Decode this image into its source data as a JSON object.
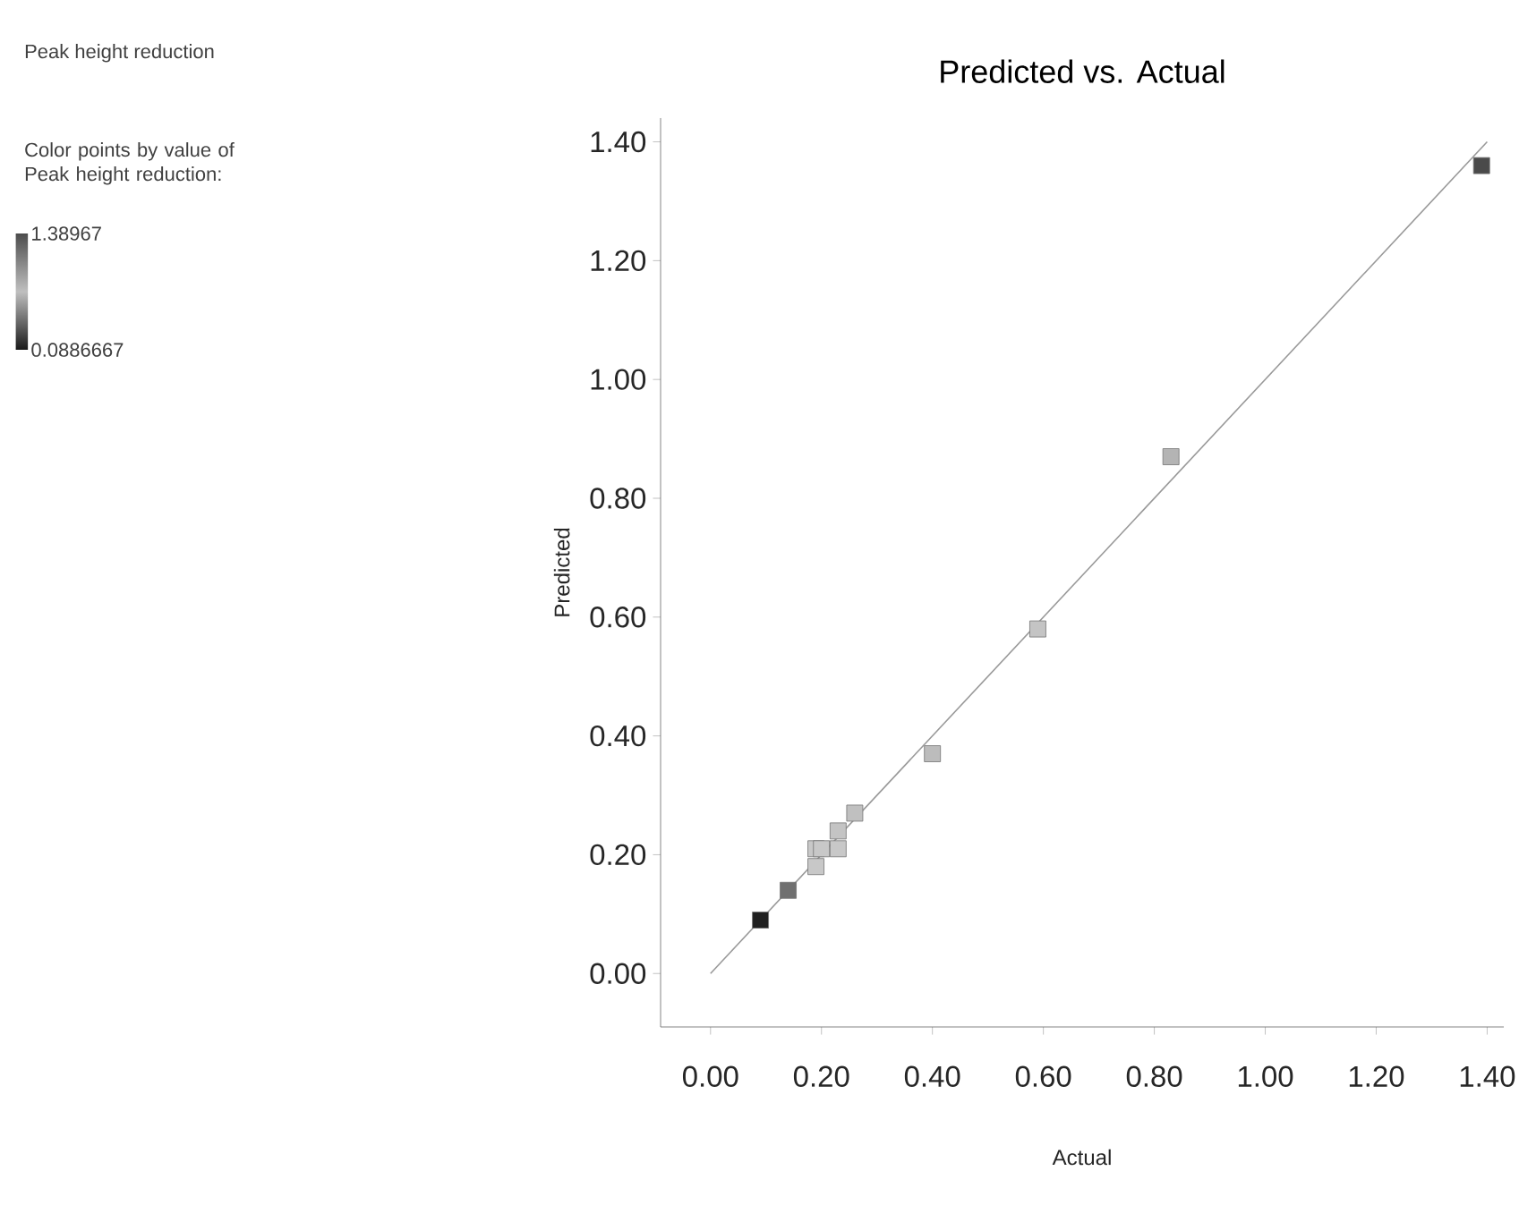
{
  "chart_data": {
    "type": "scatter",
    "title": "Predicted vs. Actual",
    "xlabel": "Actual",
    "ylabel": "Predicted",
    "annotations": [
      "Peak height reduction"
    ],
    "clabel": "Color points by value of Peak height reduction:",
    "clim": [
      0.0886667,
      1.38967
    ],
    "cticks": [
      {
        "value": 0.0886667,
        "label": "0.0886667"
      },
      {
        "value": 1.38967,
        "label": "1.38967"
      }
    ],
    "series": [
      {
        "marker": "square",
        "x": [
          1.39,
          0.83,
          0.59,
          0.4,
          0.26,
          0.23,
          0.23,
          0.2,
          0.19,
          0.19,
          0.14,
          0.09
        ],
        "values": [
          1.36,
          0.87,
          0.58,
          0.37,
          0.27,
          0.24,
          0.21,
          0.21,
          0.21,
          0.18,
          0.14,
          0.09
        ],
        "colors": [
          "#4a4a4a",
          "#b4b4b4",
          "#c4c4c4",
          "#bcbcbc",
          "#c0c0c0",
          "#c4c4c4",
          "#c8c8c8",
          "#c8c8c8",
          "#c8c8c8",
          "#c8c8c8",
          "#707070",
          "#202020"
        ]
      },
      {
        "type": "line",
        "x": [
          0,
          1.4
        ],
        "values": [
          0,
          1.4
        ],
        "color": "#999999",
        "line_style": "solid"
      }
    ],
    "xlim": [
      -0.09,
      1.43
    ],
    "ylim": [
      -0.09,
      1.44
    ],
    "xticks": [
      {
        "value": 0,
        "label": "0.00"
      },
      {
        "value": 0.2,
        "label": "0.20"
      },
      {
        "value": 0.4,
        "label": "0.40"
      },
      {
        "value": 0.6,
        "label": "0.60"
      },
      {
        "value": 0.8,
        "label": "0.80"
      },
      {
        "value": 1.0,
        "label": "1.00"
      },
      {
        "value": 1.2,
        "label": "1.20"
      },
      {
        "value": 1.4,
        "label": "1.40"
      }
    ],
    "yticks": [
      {
        "value": 0,
        "label": "0.00"
      },
      {
        "value": 0.2,
        "label": "0.20"
      },
      {
        "value": 0.4,
        "label": "0.40"
      },
      {
        "value": 0.6,
        "label": "0.60"
      },
      {
        "value": 0.8,
        "label": "0.80"
      },
      {
        "value": 1.0,
        "label": "1.00"
      },
      {
        "value": 1.2,
        "label": "1.20"
      },
      {
        "value": 1.4,
        "label": "1.40"
      }
    ],
    "grid": false
  }
}
